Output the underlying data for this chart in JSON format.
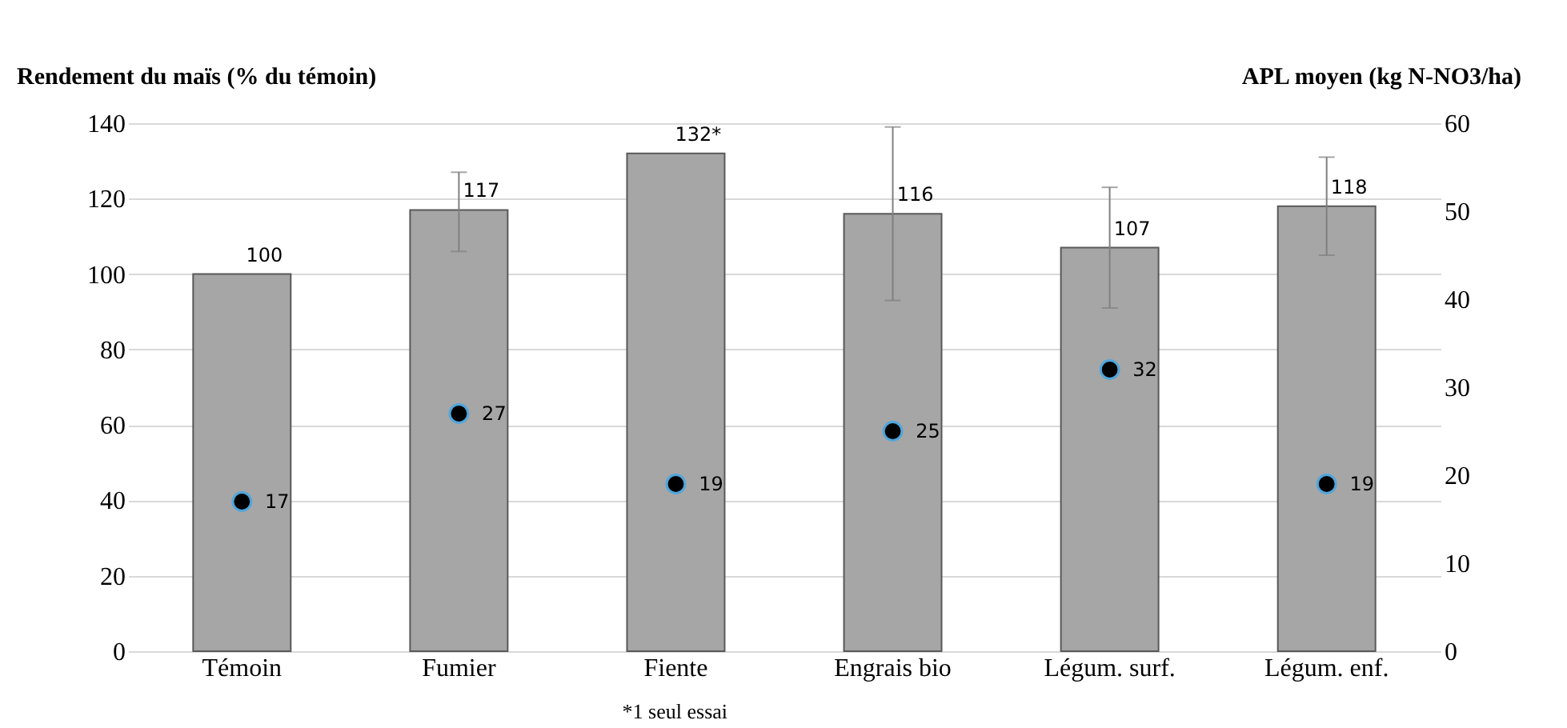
{
  "chart_data": {
    "type": "bar",
    "ylabel": "Rendement du maïs (% du témoin)",
    "y2label": "APL moyen (kg N-NO3/ha)",
    "categories": [
      "Témoin",
      "Fumier",
      "Fiente",
      "Engrais bio",
      "Légum. surf.",
      "Légum. enf."
    ],
    "series": [
      {
        "color": "#a6a6a6",
        "values": [
          100,
          117,
          132,
          116,
          107,
          118
        ],
        "errors": [
          null,
          [
            106,
            127
          ],
          null,
          [
            93,
            139
          ],
          [
            91,
            123
          ],
          [
            105,
            131
          ]
        ],
        "value_labels": [
          "100",
          "117",
          "132*",
          "116",
          "107",
          "118"
        ]
      },
      {
        "type": "scatter",
        "axis": "y2",
        "color": "#000000",
        "marker": "circle",
        "values": [
          17,
          27,
          19,
          25,
          32,
          19
        ],
        "value_labels": [
          "17",
          "27",
          "19",
          "25",
          "32",
          "19"
        ]
      }
    ],
    "ylim": [
      0,
      140
    ],
    "yticks": [
      0,
      20,
      40,
      60,
      80,
      100,
      120,
      140
    ],
    "y2lim": [
      0,
      60
    ],
    "y2ticks": [
      0,
      10,
      20,
      30,
      40,
      50,
      60
    ],
    "grid": "y",
    "annotations": [
      "*1 seul essai"
    ]
  }
}
